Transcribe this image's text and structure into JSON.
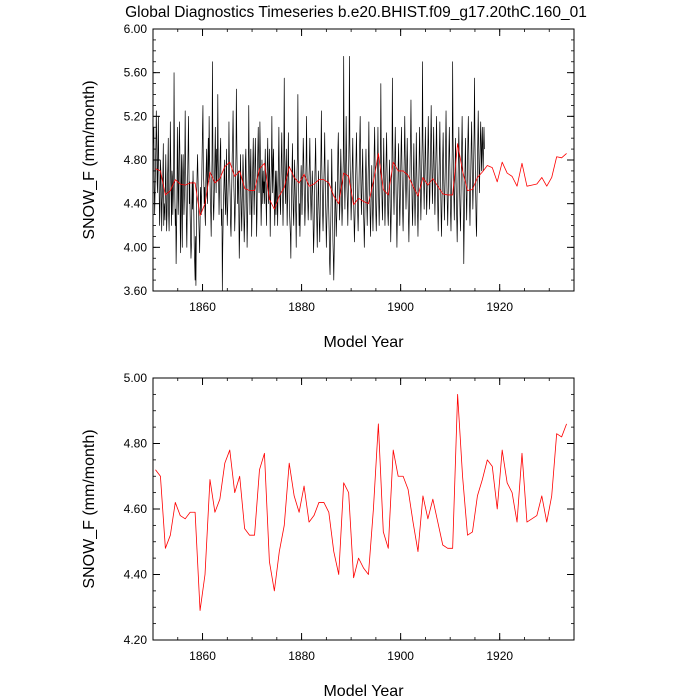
{
  "figure": {
    "title": "Global Diagnostics Timeseries b.e20.BHIST.f09_g17.20thC.160_01"
  },
  "chart_data": [
    {
      "type": "line",
      "xlabel": "Model Year",
      "ylabel": "SNOW_F (mm/month)",
      "xlim": [
        1850,
        1935
      ],
      "ylim": [
        3.6,
        6.0
      ],
      "xticks": [
        1860,
        1880,
        1900,
        1920
      ],
      "yticks": [
        3.6,
        4.0,
        4.4,
        4.8,
        5.2,
        5.6,
        6.0
      ],
      "xtick_labels": [
        "1860",
        "1880",
        "1900",
        "1920"
      ],
      "ytick_labels": [
        "3.60",
        "4.00",
        "4.40",
        "4.80",
        "5.20",
        "5.60",
        "6.00"
      ],
      "grid": false,
      "legend": "none",
      "series": [
        {
          "color": "#000000",
          "sampling": "monthly",
          "x_start": 1850.0,
          "x_step": 0.08333,
          "values": [
            4.85,
            5.05,
            5.1,
            4.55,
            4.3,
            4.5,
            4.75,
            4.95,
            5.25,
            5.0,
            4.6,
            4.5,
            4.9,
            5.2,
            4.75,
            4.5,
            4.2,
            4.35,
            4.8,
            4.7,
            4.5,
            4.15,
            4.4,
            4.5,
            4.7,
            4.95,
            4.2,
            4.4,
            4.35,
            4.25,
            4.6,
            4.85,
            4.45,
            4.15,
            4.3,
            4.6,
            4.75,
            5.0,
            4.3,
            4.15,
            4.4,
            4.6,
            5.15,
            4.8,
            4.45,
            4.2,
            4.7,
            4.65,
            4.3,
            4.45,
            4.7,
            5.6,
            4.9,
            4.45,
            4.2,
            4.35,
            3.85,
            4.1,
            4.45,
            5.1,
            4.8,
            4.3,
            4.45,
            4.85,
            5.15,
            4.9,
            4.15,
            3.95,
            4.6,
            4.85,
            4.3,
            4.0,
            4.7,
            4.85,
            4.6,
            4.3,
            4.45,
            4.8,
            5.25,
            4.7,
            4.5,
            4.2,
            4.0,
            4.35,
            4.65,
            4.9,
            5.2,
            4.75,
            4.4,
            4.6,
            4.3,
            4.1,
            3.9,
            4.0,
            4.4,
            4.6,
            4.35,
            4.7,
            4.5,
            4.3,
            4.0,
            3.85,
            3.7,
            4.1,
            3.65,
            4.1,
            4.5,
            4.7,
            4.85,
            4.65,
            4.45,
            4.25,
            4.1,
            3.95,
            4.2,
            4.55,
            4.45,
            4.3,
            4.6,
            4.85,
            5.1,
            5.3,
            4.7,
            4.6,
            4.4,
            4.55,
            4.3,
            4.2,
            4.6,
            4.75,
            4.9,
            4.5,
            4.4,
            4.8,
            5.0,
            4.6,
            5.2,
            4.85,
            4.65,
            4.4,
            4.3,
            4.1,
            4.5,
            4.8,
            5.7,
            4.95,
            4.4,
            4.25,
            4.4,
            4.6,
            4.85,
            5.1,
            4.7,
            4.5,
            4.9,
            4.6,
            4.8,
            5.4,
            4.8,
            4.6,
            4.3,
            4.5,
            4.7,
            4.9,
            5.0,
            4.4,
            4.2,
            4.35,
            3.6,
            4.0,
            4.25,
            4.45,
            4.6,
            4.8,
            4.55,
            4.4,
            4.3,
            4.65,
            4.9,
            4.4,
            4.2,
            4.35,
            4.55,
            4.7,
            5.15,
            4.8,
            4.6,
            4.45,
            4.2,
            4.1,
            4.35,
            4.6,
            4.85,
            5.0,
            5.25,
            4.9,
            4.55,
            4.4,
            4.15,
            4.3,
            4.6,
            4.85,
            5.45,
            5.0,
            4.7,
            4.4,
            4.6,
            4.7,
            4.3,
            3.9,
            4.1,
            4.55,
            4.85,
            4.55,
            4.3,
            4.15,
            4.4,
            4.55,
            4.85,
            4.7,
            4.3,
            4.05,
            4.2,
            4.4,
            4.8,
            4.9,
            4.6,
            4.4,
            4.0,
            4.2,
            4.5,
            4.7,
            5.3,
            4.85,
            4.6,
            4.3,
            4.7,
            4.9,
            4.5,
            4.1,
            4.35,
            4.6,
            4.8,
            5.0,
            4.6,
            4.3,
            4.5,
            4.8,
            5.0,
            4.7,
            4.5,
            4.1,
            4.3,
            4.7,
            4.9,
            5.1,
            4.8,
            4.5,
            4.7,
            5.15,
            4.9,
            4.5,
            4.2,
            4.4,
            4.8,
            4.6,
            4.4,
            4.7,
            4.5,
            4.6,
            4.4,
            4.7,
            4.9,
            4.6,
            4.4,
            4.2,
            4.6,
            4.8,
            5.0,
            4.6,
            4.4,
            4.7,
            4.9,
            4.6,
            4.1,
            4.4,
            4.6,
            4.8,
            5.2,
            4.7,
            4.5,
            4.8,
            4.9,
            4.6,
            4.4,
            4.2,
            4.5,
            4.7,
            4.3,
            4.55,
            4.7,
            4.4,
            4.2,
            4.5,
            4.8,
            5.1,
            4.7,
            4.55,
            4.4,
            4.3,
            4.6,
            4.85,
            5.05,
            4.7,
            4.45,
            4.2,
            4.45,
            4.9,
            5.55,
            4.85,
            4.6,
            4.4,
            4.7,
            4.9,
            4.6,
            4.2,
            4.4,
            4.7,
            5.05,
            4.65,
            4.45,
            4.3,
            4.2,
            4.1,
            3.9,
            4.3,
            4.55,
            4.75,
            4.95,
            4.5,
            4.3,
            4.2,
            4.5,
            4.8,
            4.6,
            4.4,
            4.3,
            4.0,
            4.45,
            4.7,
            4.85,
            5.4,
            4.8,
            4.5,
            4.2,
            4.4,
            4.1,
            4.3,
            4.6,
            4.75,
            4.55,
            4.3,
            4.5,
            4.7,
            5.0,
            4.85,
            4.6,
            4.4,
            4.2,
            4.35,
            4.6,
            4.8,
            5.2,
            4.75,
            4.5,
            4.4,
            4.25,
            4.4,
            4.65,
            4.8,
            5.0,
            4.7,
            4.45,
            4.25,
            4.4,
            4.55,
            4.7,
            4.5,
            4.2,
            3.95,
            4.1,
            4.35,
            4.6,
            4.8,
            5.0,
            4.7,
            4.4,
            4.2,
            4.0,
            4.3,
            4.5,
            4.7,
            4.4,
            4.2,
            4.05,
            4.3,
            4.6,
            4.9,
            5.25,
            4.75,
            4.55,
            4.3,
            4.15,
            4.35,
            4.6,
            4.8,
            5.05,
            4.7,
            4.45,
            4.25,
            4.0,
            4.2,
            4.4,
            4.6,
            4.8,
            4.5,
            4.3,
            4.1,
            3.85,
            3.75,
            4.05,
            4.3,
            4.55,
            4.9,
            4.6,
            4.3,
            4.05,
            3.9,
            3.7,
            3.95,
            4.2,
            4.45,
            4.6,
            4.3,
            4.1,
            4.25,
            4.4,
            4.6,
            4.9,
            5.05,
            4.7,
            4.5,
            4.25,
            4.4,
            4.65,
            4.9,
            4.7,
            4.4,
            4.2,
            4.35,
            4.6,
            4.8,
            5.75,
            4.9,
            4.6,
            4.35,
            4.6,
            4.8,
            5.2,
            4.85,
            4.55,
            4.4,
            4.2,
            4.45,
            4.7,
            5.0,
            5.75,
            4.95,
            4.7,
            4.5,
            4.25,
            4.4,
            4.6,
            4.8,
            5.0,
            4.7,
            4.45,
            4.25,
            4.05,
            4.2,
            4.4,
            4.65,
            4.85,
            5.05,
            4.75,
            4.5,
            4.3,
            4.15,
            4.35,
            4.55,
            4.8,
            5.0,
            5.2,
            4.8,
            4.5,
            4.3,
            4.5,
            4.7,
            4.9,
            4.6,
            4.35,
            4.2,
            4.0,
            4.2,
            4.45,
            4.7,
            4.9,
            4.65,
            4.4,
            4.2,
            4.4,
            4.6,
            4.8,
            5.15,
            4.75,
            4.5,
            4.3,
            4.1,
            4.3,
            4.55,
            4.75,
            4.5,
            4.3,
            4.15,
            4.4,
            4.65,
            4.9,
            5.1,
            4.8,
            4.55,
            4.3,
            4.15,
            4.35,
            4.6,
            4.8,
            5.1,
            4.7,
            4.4,
            4.2,
            4.4,
            4.6,
            4.8,
            5.5,
            4.9,
            4.6,
            4.4,
            4.25,
            4.5,
            4.7,
            5.0,
            4.7,
            4.45,
            4.2,
            4.4,
            4.65,
            4.85,
            5.05,
            4.75,
            4.5,
            4.3,
            4.2,
            4.4,
            4.6,
            4.8,
            4.55,
            4.3,
            4.05,
            4.25,
            4.5,
            4.8,
            5.55,
            4.95,
            4.7,
            4.5,
            4.3,
            4.6,
            4.85,
            5.1,
            4.8,
            4.5,
            4.25,
            4.0,
            4.25,
            4.5,
            4.75,
            4.95,
            4.7,
            4.4,
            4.2,
            4.4,
            4.65,
            4.9,
            5.1,
            4.8,
            4.55,
            4.3,
            4.15,
            4.4,
            4.65,
            4.9,
            5.2,
            4.85,
            4.6,
            4.35,
            4.55,
            4.8,
            5.0,
            4.7,
            4.45,
            4.25,
            4.05,
            4.3,
            4.55,
            4.8,
            5.0,
            5.35,
            4.9,
            4.6,
            4.35,
            4.2,
            4.45,
            4.7,
            4.95,
            4.65,
            4.4,
            4.2,
            4.45,
            4.7,
            5.05,
            4.75,
            4.5,
            4.3,
            4.1,
            4.35,
            4.6,
            4.85,
            5.1,
            4.8,
            4.5,
            4.25,
            4.45,
            4.7,
            4.95,
            5.7,
            5.0,
            4.75,
            4.55,
            4.35,
            4.6,
            4.85,
            5.1,
            4.8,
            4.55,
            4.3,
            4.45,
            4.7,
            4.95,
            5.2,
            4.9,
            4.6,
            4.35,
            4.5,
            4.75,
            5.0,
            5.3,
            4.95,
            4.65,
            4.4,
            4.6,
            4.85,
            5.1,
            4.8,
            4.55,
            4.3,
            4.5,
            4.75,
            4.95,
            5.2,
            4.85,
            4.6,
            4.35,
            4.15,
            4.4,
            4.65,
            4.9,
            5.15,
            4.8,
            4.55,
            4.3,
            4.1,
            4.35,
            4.6,
            4.85,
            5.05,
            4.75,
            4.5,
            4.25,
            4.45,
            4.7,
            4.95,
            5.25,
            4.9,
            4.6,
            4.4,
            4.2,
            4.4,
            4.65,
            4.9,
            5.1,
            4.8,
            4.55,
            4.3,
            4.15,
            4.4,
            4.65,
            4.9,
            5.7,
            5.0,
            4.7,
            4.45,
            4.25,
            4.5,
            4.75,
            5.0,
            4.7,
            4.45,
            4.25,
            4.05,
            4.3,
            4.6,
            4.85,
            5.1,
            4.8,
            4.5,
            4.3,
            4.15,
            4.4,
            4.7,
            4.95,
            5.2,
            4.85,
            4.6,
            4.35,
            3.85,
            4.2,
            4.5,
            4.75,
            5.0,
            4.7,
            4.45,
            4.25,
            4.5,
            4.75,
            5.0,
            5.2,
            4.9,
            4.6,
            4.4,
            4.2,
            4.45,
            4.7,
            4.95,
            5.15,
            4.85,
            4.6,
            4.35,
            4.55,
            4.8,
            5.05,
            5.55,
            5.0,
            4.7,
            4.45,
            4.2,
            4.1,
            4.45,
            4.75,
            5.0,
            5.25,
            4.95,
            4.7,
            4.5,
            4.75,
            5.0,
            5.15,
            4.9,
            4.7,
            4.95,
            5.1,
            4.85,
            4.7,
            4.95,
            5.1,
            4.9
          ]
        },
        {
          "color": "#ff0000",
          "sampling": "annual",
          "x_start": 1850.5,
          "x_step": 1,
          "values": [
            4.72,
            4.7,
            4.48,
            4.52,
            4.62,
            4.58,
            4.57,
            4.59,
            4.59,
            4.29,
            4.4,
            4.69,
            4.59,
            4.63,
            4.74,
            4.78,
            4.65,
            4.7,
            4.54,
            4.52,
            4.52,
            4.72,
            4.77,
            4.44,
            4.35,
            4.47,
            4.55,
            4.74,
            4.64,
            4.59,
            4.67,
            4.56,
            4.58,
            4.62,
            4.62,
            4.59,
            4.47,
            4.4,
            4.68,
            4.65,
            4.39,
            4.45,
            4.42,
            4.4,
            4.6,
            4.86,
            4.53,
            4.48,
            4.78,
            4.7,
            4.7,
            4.66,
            4.56,
            4.47,
            4.64,
            4.57,
            4.63,
            4.56,
            4.49,
            4.48,
            4.48,
            4.95,
            4.7,
            4.52,
            4.53,
            4.64,
            4.69,
            4.75,
            4.73,
            4.6,
            4.78,
            4.68,
            4.65,
            4.56,
            4.77,
            4.56,
            4.57,
            4.58,
            4.64,
            4.56,
            4.64,
            4.83,
            4.82,
            4.86
          ]
        }
      ]
    },
    {
      "type": "line",
      "xlabel": "Model Year",
      "ylabel": "SNOW_F (mm/month)",
      "xlim": [
        1850,
        1935
      ],
      "ylim": [
        4.2,
        5.0
      ],
      "xticks": [
        1860,
        1880,
        1900,
        1920
      ],
      "yticks": [
        4.2,
        4.4,
        4.6,
        4.8,
        5.0
      ],
      "xtick_labels": [
        "1860",
        "1880",
        "1900",
        "1920"
      ],
      "ytick_labels": [
        "4.20",
        "4.40",
        "4.60",
        "4.80",
        "5.00"
      ],
      "grid": false,
      "legend": "none",
      "series": [
        {
          "color": "#ff0000",
          "sampling": "annual",
          "x_start": 1850.5,
          "x_step": 1,
          "values": [
            4.72,
            4.7,
            4.48,
            4.52,
            4.62,
            4.58,
            4.57,
            4.59,
            4.59,
            4.29,
            4.4,
            4.69,
            4.59,
            4.63,
            4.74,
            4.78,
            4.65,
            4.7,
            4.54,
            4.52,
            4.52,
            4.72,
            4.77,
            4.44,
            4.35,
            4.47,
            4.55,
            4.74,
            4.64,
            4.59,
            4.67,
            4.56,
            4.58,
            4.62,
            4.62,
            4.59,
            4.47,
            4.4,
            4.68,
            4.65,
            4.39,
            4.45,
            4.42,
            4.4,
            4.6,
            4.86,
            4.53,
            4.48,
            4.78,
            4.7,
            4.7,
            4.66,
            4.56,
            4.47,
            4.64,
            4.57,
            4.63,
            4.56,
            4.49,
            4.48,
            4.48,
            4.95,
            4.7,
            4.52,
            4.53,
            4.64,
            4.69,
            4.75,
            4.73,
            4.6,
            4.78,
            4.68,
            4.65,
            4.56,
            4.77,
            4.56,
            4.57,
            4.58,
            4.64,
            4.56,
            4.64,
            4.83,
            4.82,
            4.86
          ]
        }
      ]
    }
  ]
}
